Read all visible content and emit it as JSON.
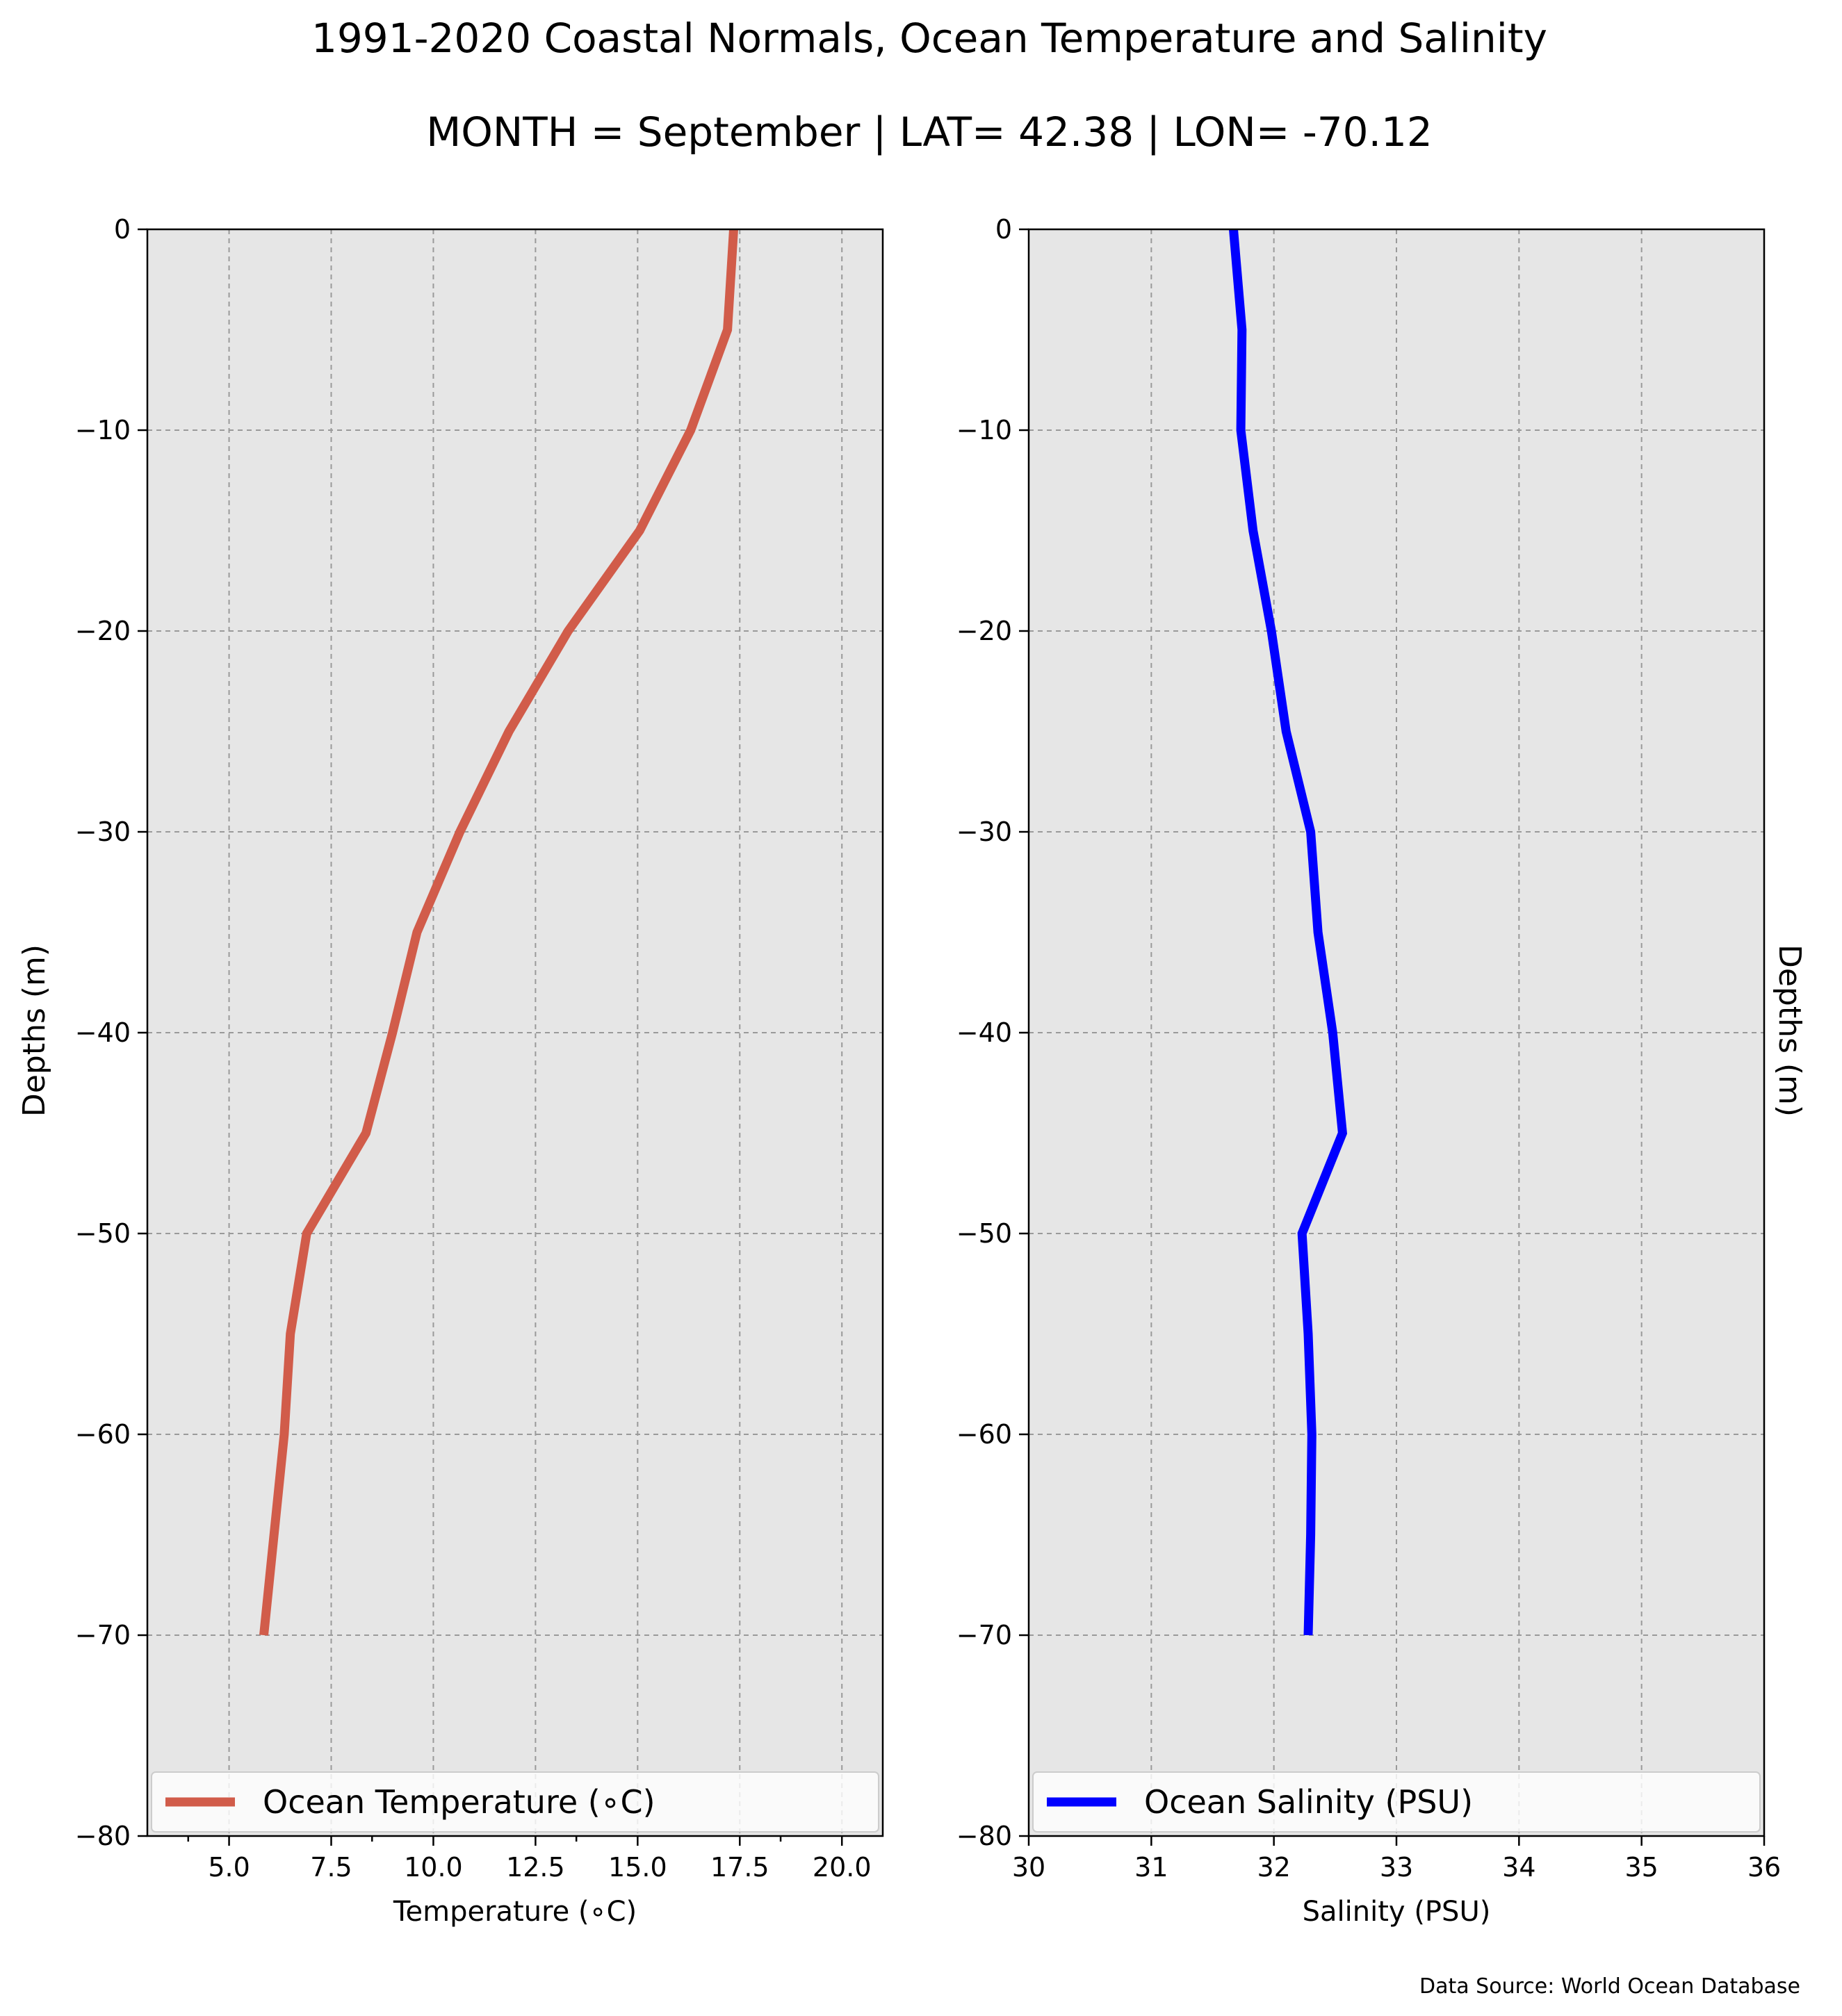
{
  "title": "1991-2020 Coastal Normals, Ocean Temperature and Salinity",
  "subtitle": "MONTH = September | LAT= 42.38 | LON= -70.12",
  "source": "Data Source: World Ocean Database",
  "chart_data": [
    {
      "type": "line",
      "xlabel": "Temperature (∘C)",
      "ylabel": "Depths (m)",
      "xlim": [
        3.0,
        21.0
      ],
      "ylim": [
        -80,
        0
      ],
      "grid": true,
      "legend_position": "bottom",
      "x_ticks": [
        {
          "value": 5.0,
          "label": "5.0"
        },
        {
          "value": 7.5,
          "label": "7.5"
        },
        {
          "value": 10.0,
          "label": "10.0"
        },
        {
          "value": 12.5,
          "label": "12.5"
        },
        {
          "value": 15.0,
          "label": "15.0"
        },
        {
          "value": 17.5,
          "label": "17.5"
        },
        {
          "value": 20.0,
          "label": "20.0"
        }
      ],
      "y_ticks": [
        {
          "value": 0,
          "label": "0"
        },
        {
          "value": -10,
          "label": "−10"
        },
        {
          "value": -20,
          "label": "−20"
        },
        {
          "value": -30,
          "label": "−30"
        },
        {
          "value": -40,
          "label": "−40"
        },
        {
          "value": -50,
          "label": "−50"
        },
        {
          "value": -60,
          "label": "−60"
        },
        {
          "value": -70,
          "label": "−70"
        },
        {
          "value": -80,
          "label": "−80"
        }
      ],
      "series": [
        {
          "name": "Ocean Temperature (∘C)",
          "color": "#d15c4a",
          "points": [
            {
              "x": 17.35,
              "y": 0
            },
            {
              "x": 17.2,
              "y": -5
            },
            {
              "x": 16.3,
              "y": -10
            },
            {
              "x": 15.05,
              "y": -15
            },
            {
              "x": 13.3,
              "y": -20
            },
            {
              "x": 11.85,
              "y": -25
            },
            {
              "x": 10.65,
              "y": -30
            },
            {
              "x": 9.6,
              "y": -35
            },
            {
              "x": 9.0,
              "y": -40
            },
            {
              "x": 8.35,
              "y": -45
            },
            {
              "x": 6.9,
              "y": -50
            },
            {
              "x": 6.5,
              "y": -55
            },
            {
              "x": 6.35,
              "y": -60
            },
            {
              "x": 6.1,
              "y": -65
            },
            {
              "x": 5.85,
              "y": -70
            }
          ]
        }
      ]
    },
    {
      "type": "line",
      "xlabel": "Salinity (PSU)",
      "ylabel": "Depths (m)",
      "xlim": [
        30,
        36
      ],
      "ylim": [
        -80,
        0
      ],
      "grid": true,
      "legend_position": "bottom",
      "x_ticks": [
        {
          "value": 30,
          "label": "30"
        },
        {
          "value": 31,
          "label": "31"
        },
        {
          "value": 32,
          "label": "32"
        },
        {
          "value": 33,
          "label": "33"
        },
        {
          "value": 34,
          "label": "34"
        },
        {
          "value": 35,
          "label": "35"
        },
        {
          "value": 36,
          "label": "36"
        }
      ],
      "y_ticks": [
        {
          "value": 0,
          "label": "0"
        },
        {
          "value": -10,
          "label": "−10"
        },
        {
          "value": -20,
          "label": "−20"
        },
        {
          "value": -30,
          "label": "−30"
        },
        {
          "value": -40,
          "label": "−40"
        },
        {
          "value": -50,
          "label": "−50"
        },
        {
          "value": -60,
          "label": "−60"
        },
        {
          "value": -70,
          "label": "−70"
        },
        {
          "value": -80,
          "label": "−80"
        }
      ],
      "series": [
        {
          "name": "Ocean Salinity (PSU)",
          "color": "#0000ff",
          "points": [
            {
              "x": 31.67,
              "y": 0
            },
            {
              "x": 31.74,
              "y": -5
            },
            {
              "x": 31.73,
              "y": -10
            },
            {
              "x": 31.83,
              "y": -15
            },
            {
              "x": 31.98,
              "y": -20
            },
            {
              "x": 32.1,
              "y": -25
            },
            {
              "x": 32.3,
              "y": -30
            },
            {
              "x": 32.36,
              "y": -35
            },
            {
              "x": 32.48,
              "y": -40
            },
            {
              "x": 32.56,
              "y": -45
            },
            {
              "x": 32.23,
              "y": -50
            },
            {
              "x": 32.28,
              "y": -55
            },
            {
              "x": 32.31,
              "y": -60
            },
            {
              "x": 32.3,
              "y": -65
            },
            {
              "x": 32.28,
              "y": -70
            }
          ]
        }
      ]
    }
  ]
}
